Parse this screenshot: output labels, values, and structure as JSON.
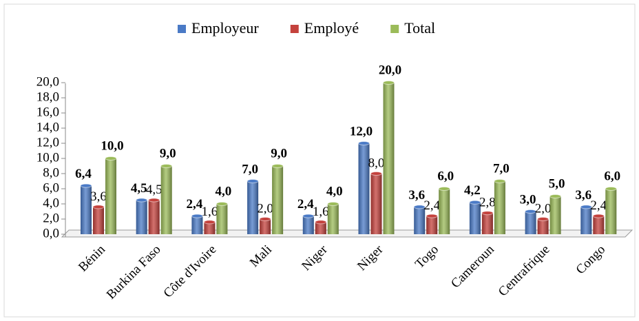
{
  "chart_data": {
    "type": "bar",
    "categories": [
      "Bénin",
      "Burkina Faso",
      "Côte d'Ivoire",
      "Mali",
      "Niger",
      "Niger",
      "Togo",
      "Cameroun",
      "Centrafrique",
      "Congo"
    ],
    "series": [
      {
        "name": "Employeur",
        "color": "#4a7ac6",
        "values": [
          6.4,
          4.5,
          2.4,
          7.0,
          2.4,
          12.0,
          3.6,
          4.2,
          3.0,
          3.6
        ],
        "value_labels": [
          "6,4",
          "4,5",
          "2,4",
          "7,0",
          "2,4",
          "12,0",
          "3,6",
          "4,2",
          "3,0",
          "3,6"
        ]
      },
      {
        "name": "Employé",
        "color": "#c4413c",
        "values": [
          3.6,
          4.5,
          1.6,
          2.0,
          1.6,
          8.0,
          2.4,
          2.8,
          2.0,
          2.4
        ],
        "value_labels": [
          "3,6",
          "4,5",
          "1,6",
          "2,0",
          "1,6",
          "8,0",
          "2,4",
          "2,8",
          "2,0",
          "2,4"
        ]
      },
      {
        "name": "Total",
        "color": "#9bbb59",
        "values": [
          10,
          9,
          4,
          9,
          4,
          20,
          6,
          7,
          5,
          6
        ],
        "value_labels": [
          "10,0",
          "9,0",
          "4,0",
          "9,0",
          "4,0",
          "20,0",
          "6,0",
          "7,0",
          "5,0",
          "6,0"
        ]
      }
    ],
    "ylim": [
      0,
      20
    ],
    "yticks": [
      {
        "value": 0,
        "label": "0,0"
      },
      {
        "value": 2,
        "label": "2,0"
      },
      {
        "value": 4,
        "label": "4,0"
      },
      {
        "value": 6,
        "label": "6,0"
      },
      {
        "value": 8,
        "label": "8,0"
      },
      {
        "value": 10,
        "label": "10,0"
      },
      {
        "value": 12,
        "label": "12,0"
      },
      {
        "value": 14,
        "label": "14,0"
      },
      {
        "value": 16,
        "label": "16,0"
      },
      {
        "value": 18,
        "label": "18,0"
      },
      {
        "value": 20,
        "label": "20,0"
      }
    ],
    "legend": "top"
  }
}
